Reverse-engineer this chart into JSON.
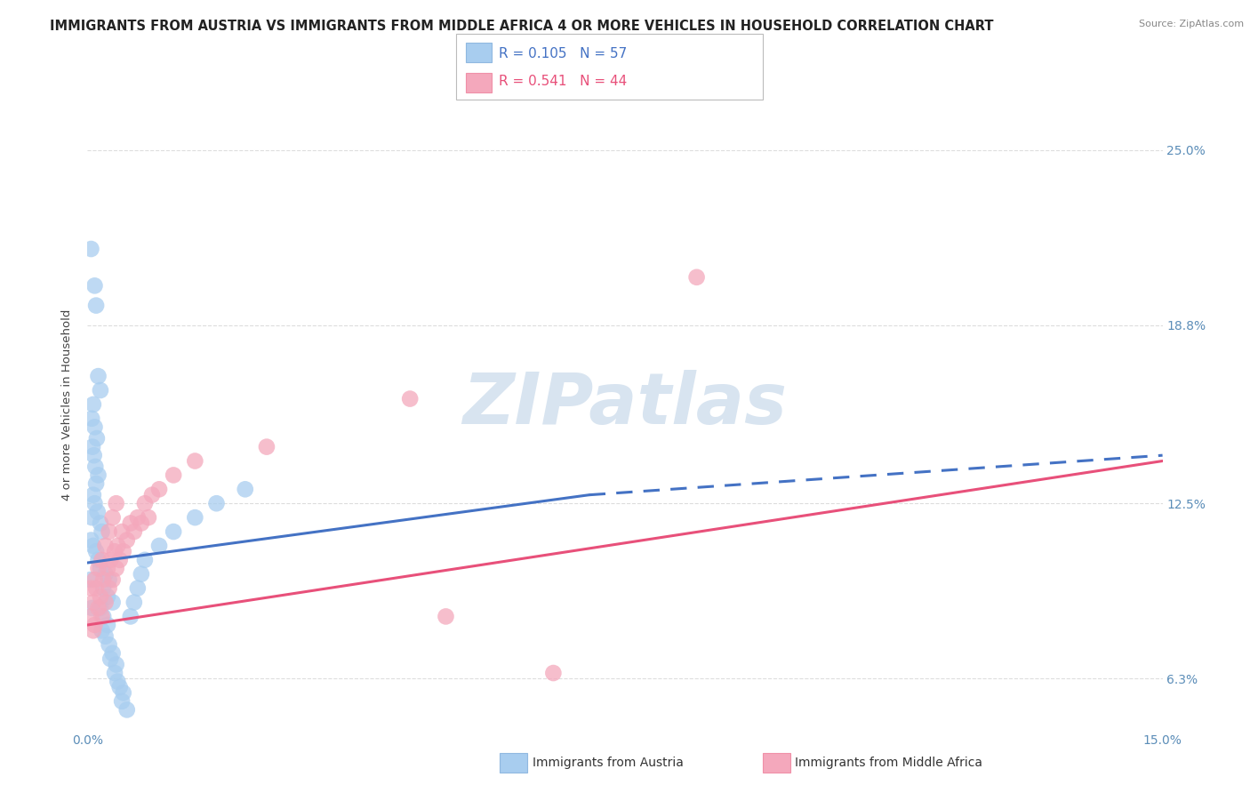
{
  "title": "IMMIGRANTS FROM AUSTRIA VS IMMIGRANTS FROM MIDDLE AFRICA 4 OR MORE VEHICLES IN HOUSEHOLD CORRELATION CHART",
  "source": "Source: ZipAtlas.com",
  "xlim": [
    0.0,
    15.0
  ],
  "ylim": [
    4.5,
    27.5
  ],
  "ylabel": "4 or more Vehicles in Household",
  "ytick_vals": [
    6.3,
    12.5,
    18.8,
    25.0
  ],
  "xtick_vals": [
    0.0,
    15.0
  ],
  "legend_entries": [
    {
      "label": "Immigrants from Austria",
      "color": "#A8CDEF",
      "R": "0.105",
      "N": "57",
      "line_color": "#4472C4"
    },
    {
      "label": "Immigrants from Middle Africa",
      "color": "#F4A8BC",
      "R": "0.541",
      "N": "44",
      "line_color": "#E8507A"
    }
  ],
  "austria_scatter": [
    [
      0.05,
      21.5
    ],
    [
      0.1,
      20.2
    ],
    [
      0.12,
      19.5
    ],
    [
      0.15,
      17.0
    ],
    [
      0.18,
      16.5
    ],
    [
      0.08,
      16.0
    ],
    [
      0.06,
      15.5
    ],
    [
      0.1,
      15.2
    ],
    [
      0.13,
      14.8
    ],
    [
      0.07,
      14.5
    ],
    [
      0.09,
      14.2
    ],
    [
      0.11,
      13.8
    ],
    [
      0.15,
      13.5
    ],
    [
      0.12,
      13.2
    ],
    [
      0.08,
      12.8
    ],
    [
      0.1,
      12.5
    ],
    [
      0.14,
      12.2
    ],
    [
      0.06,
      12.0
    ],
    [
      0.18,
      11.8
    ],
    [
      0.2,
      11.5
    ],
    [
      0.05,
      11.2
    ],
    [
      0.08,
      11.0
    ],
    [
      0.12,
      10.8
    ],
    [
      0.15,
      10.5
    ],
    [
      0.18,
      10.2
    ],
    [
      0.25,
      10.0
    ],
    [
      0.3,
      9.8
    ],
    [
      0.22,
      9.5
    ],
    [
      0.28,
      9.2
    ],
    [
      0.35,
      9.0
    ],
    [
      0.18,
      8.8
    ],
    [
      0.22,
      8.5
    ],
    [
      0.28,
      8.2
    ],
    [
      0.2,
      8.0
    ],
    [
      0.25,
      7.8
    ],
    [
      0.3,
      7.5
    ],
    [
      0.35,
      7.2
    ],
    [
      0.32,
      7.0
    ],
    [
      0.4,
      6.8
    ],
    [
      0.38,
      6.5
    ],
    [
      0.42,
      6.2
    ],
    [
      0.45,
      6.0
    ],
    [
      0.5,
      5.8
    ],
    [
      0.48,
      5.5
    ],
    [
      0.55,
      5.2
    ],
    [
      0.6,
      8.5
    ],
    [
      0.65,
      9.0
    ],
    [
      0.7,
      9.5
    ],
    [
      0.75,
      10.0
    ],
    [
      0.8,
      10.5
    ],
    [
      1.0,
      11.0
    ],
    [
      1.2,
      11.5
    ],
    [
      1.5,
      12.0
    ],
    [
      1.8,
      12.5
    ],
    [
      2.2,
      13.0
    ],
    [
      0.04,
      9.8
    ],
    [
      0.06,
      8.8
    ]
  ],
  "middle_africa_scatter": [
    [
      0.05,
      8.5
    ],
    [
      0.08,
      9.0
    ],
    [
      0.1,
      8.2
    ],
    [
      0.12,
      9.5
    ],
    [
      0.15,
      8.8
    ],
    [
      0.18,
      9.2
    ],
    [
      0.2,
      8.5
    ],
    [
      0.22,
      9.8
    ],
    [
      0.25,
      9.0
    ],
    [
      0.28,
      10.2
    ],
    [
      0.3,
      9.5
    ],
    [
      0.32,
      10.5
    ],
    [
      0.35,
      9.8
    ],
    [
      0.38,
      10.8
    ],
    [
      0.4,
      10.2
    ],
    [
      0.42,
      11.0
    ],
    [
      0.45,
      10.5
    ],
    [
      0.48,
      11.5
    ],
    [
      0.5,
      10.8
    ],
    [
      0.55,
      11.2
    ],
    [
      0.6,
      11.8
    ],
    [
      0.65,
      11.5
    ],
    [
      0.7,
      12.0
    ],
    [
      0.75,
      11.8
    ],
    [
      0.8,
      12.5
    ],
    [
      0.85,
      12.0
    ],
    [
      0.9,
      12.8
    ],
    [
      1.0,
      13.0
    ],
    [
      1.2,
      13.5
    ],
    [
      1.5,
      14.0
    ],
    [
      0.05,
      9.5
    ],
    [
      0.1,
      9.8
    ],
    [
      0.15,
      10.2
    ],
    [
      0.2,
      10.5
    ],
    [
      0.25,
      11.0
    ],
    [
      0.3,
      11.5
    ],
    [
      0.35,
      12.0
    ],
    [
      0.4,
      12.5
    ],
    [
      4.5,
      16.2
    ],
    [
      8.5,
      20.5
    ],
    [
      2.5,
      14.5
    ],
    [
      5.0,
      8.5
    ],
    [
      6.5,
      6.5
    ],
    [
      0.08,
      8.0
    ]
  ],
  "austria_line_color": "#4472C4",
  "middle_africa_line_color": "#E8507A",
  "watermark": "ZIPatlas",
  "watermark_color_hex": "#D8E4F0",
  "background_color": "#FFFFFF",
  "grid_color": "#DDDDDD",
  "title_fontsize": 10.5,
  "axis_label_fontsize": 9.5,
  "tick_fontsize": 10,
  "dot_size": 180
}
